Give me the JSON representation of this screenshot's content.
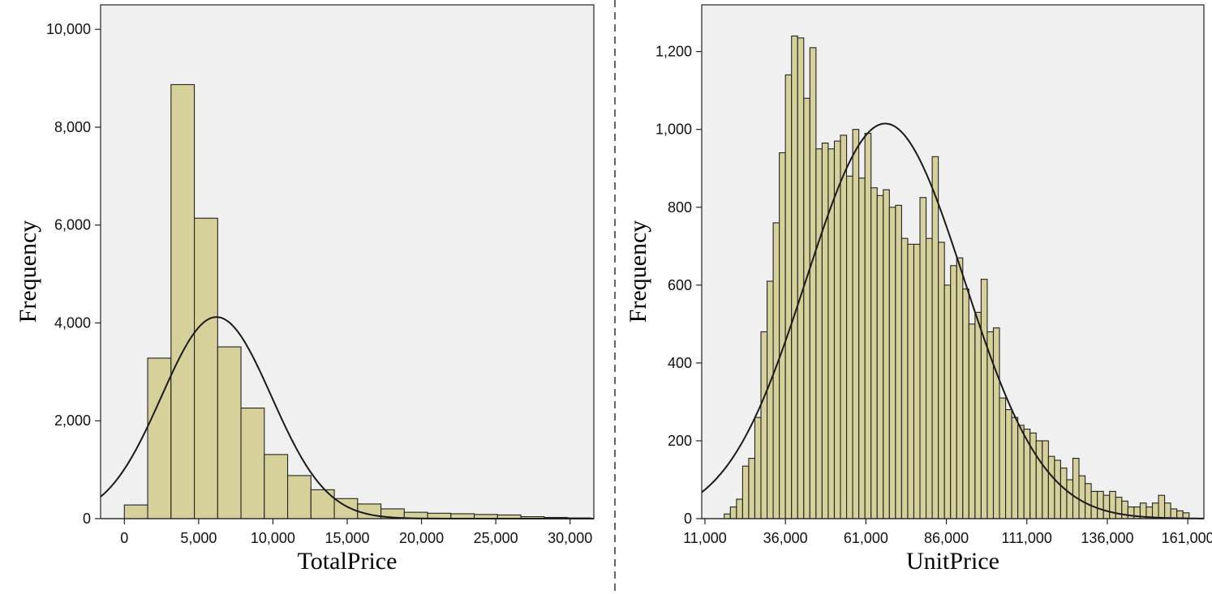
{
  "colors": {
    "bar_fill": "#d6d09b",
    "plot_background": "#f0f0f0",
    "curve": "#1a1a1a"
  },
  "chart_data": [
    {
      "type": "bar",
      "subtype": "histogram",
      "xlabel": "TotalPrice",
      "ylabel": "Frequency",
      "xlim": [
        -1600,
        31600
      ],
      "ylim": [
        0,
        10500
      ],
      "x_ticks": [
        0,
        5000,
        10000,
        15000,
        20000,
        25000,
        30000
      ],
      "x_tick_labels": [
        "0",
        "5,000",
        "10,000",
        "15,000",
        "20,000",
        "25,000",
        "30,000"
      ],
      "y_ticks": [
        0,
        2000,
        4000,
        6000,
        8000,
        10000
      ],
      "y_tick_labels": [
        "0",
        "2,000",
        "4,000",
        "6,000",
        "8,000",
        "10,000"
      ],
      "bin_width": 1570,
      "bin_starts": [
        0,
        1570,
        3140,
        4710,
        6280,
        7850,
        9420,
        10990,
        12560,
        14130,
        15700,
        17270,
        18840,
        20410,
        21980,
        23550,
        25120,
        26690,
        28260,
        29830
      ],
      "values": [
        280,
        3280,
        8870,
        6140,
        3510,
        2260,
        1310,
        880,
        590,
        410,
        300,
        200,
        130,
        110,
        100,
        85,
        75,
        40,
        25,
        15
      ],
      "normal_curve": {
        "mean": 6200,
        "sd": 3700,
        "peak": 4120
      },
      "grid": false
    },
    {
      "type": "bar",
      "subtype": "histogram",
      "xlabel": "UnitPrice",
      "ylabel": "Frequency",
      "xlim": [
        10000,
        166000
      ],
      "ylim": [
        0,
        1320
      ],
      "x_ticks": [
        11000,
        36000,
        61000,
        86000,
        111000,
        136000,
        161000
      ],
      "x_tick_labels": [
        "11,000",
        "36,000",
        "61,000",
        "86,000",
        "111,000",
        "136,000",
        "161,000"
      ],
      "y_ticks": [
        0,
        200,
        400,
        600,
        800,
        1000,
        1200
      ],
      "y_tick_labels": [
        "0",
        "200",
        "400",
        "600",
        "800",
        "1,000",
        "1,200"
      ],
      "bin_width": 1900,
      "bin_starts": [
        17000,
        18900,
        20800,
        22700,
        24600,
        26500,
        28400,
        30300,
        32200,
        34100,
        36000,
        37900,
        39800,
        41700,
        43600,
        45500,
        47400,
        49300,
        51200,
        53100,
        55000,
        56900,
        58800,
        60700,
        62600,
        64500,
        66400,
        68300,
        70200,
        72100,
        74000,
        75900,
        77800,
        79700,
        81600,
        83500,
        85400,
        87300,
        89200,
        91100,
        93000,
        94900,
        96800,
        98700,
        100600,
        102500,
        104400,
        106300,
        108200,
        110100,
        112000,
        113900,
        115800,
        117700,
        119600,
        121500,
        123400,
        125300,
        127200,
        129100,
        131000,
        132900,
        134800,
        136700,
        138600,
        140500,
        142400,
        144300,
        146200,
        148100,
        150000,
        151900,
        153800,
        155700,
        157600,
        159500
      ],
      "values": [
        12,
        30,
        50,
        135,
        155,
        260,
        480,
        610,
        760,
        940,
        1140,
        1240,
        1235,
        1080,
        1210,
        950,
        965,
        950,
        970,
        985,
        880,
        1000,
        875,
        990,
        850,
        830,
        845,
        800,
        805,
        720,
        705,
        705,
        825,
        720,
        930,
        710,
        600,
        650,
        670,
        590,
        500,
        530,
        615,
        480,
        490,
        310,
        280,
        260,
        240,
        230,
        220,
        200,
        200,
        160,
        150,
        130,
        100,
        155,
        110,
        90,
        70,
        70,
        60,
        70,
        55,
        45,
        30,
        30,
        40,
        30,
        40,
        60,
        40,
        25,
        20,
        15
      ],
      "normal_curve": {
        "mean": 67000,
        "sd": 24500,
        "peak": 1015
      },
      "grid": false
    }
  ]
}
